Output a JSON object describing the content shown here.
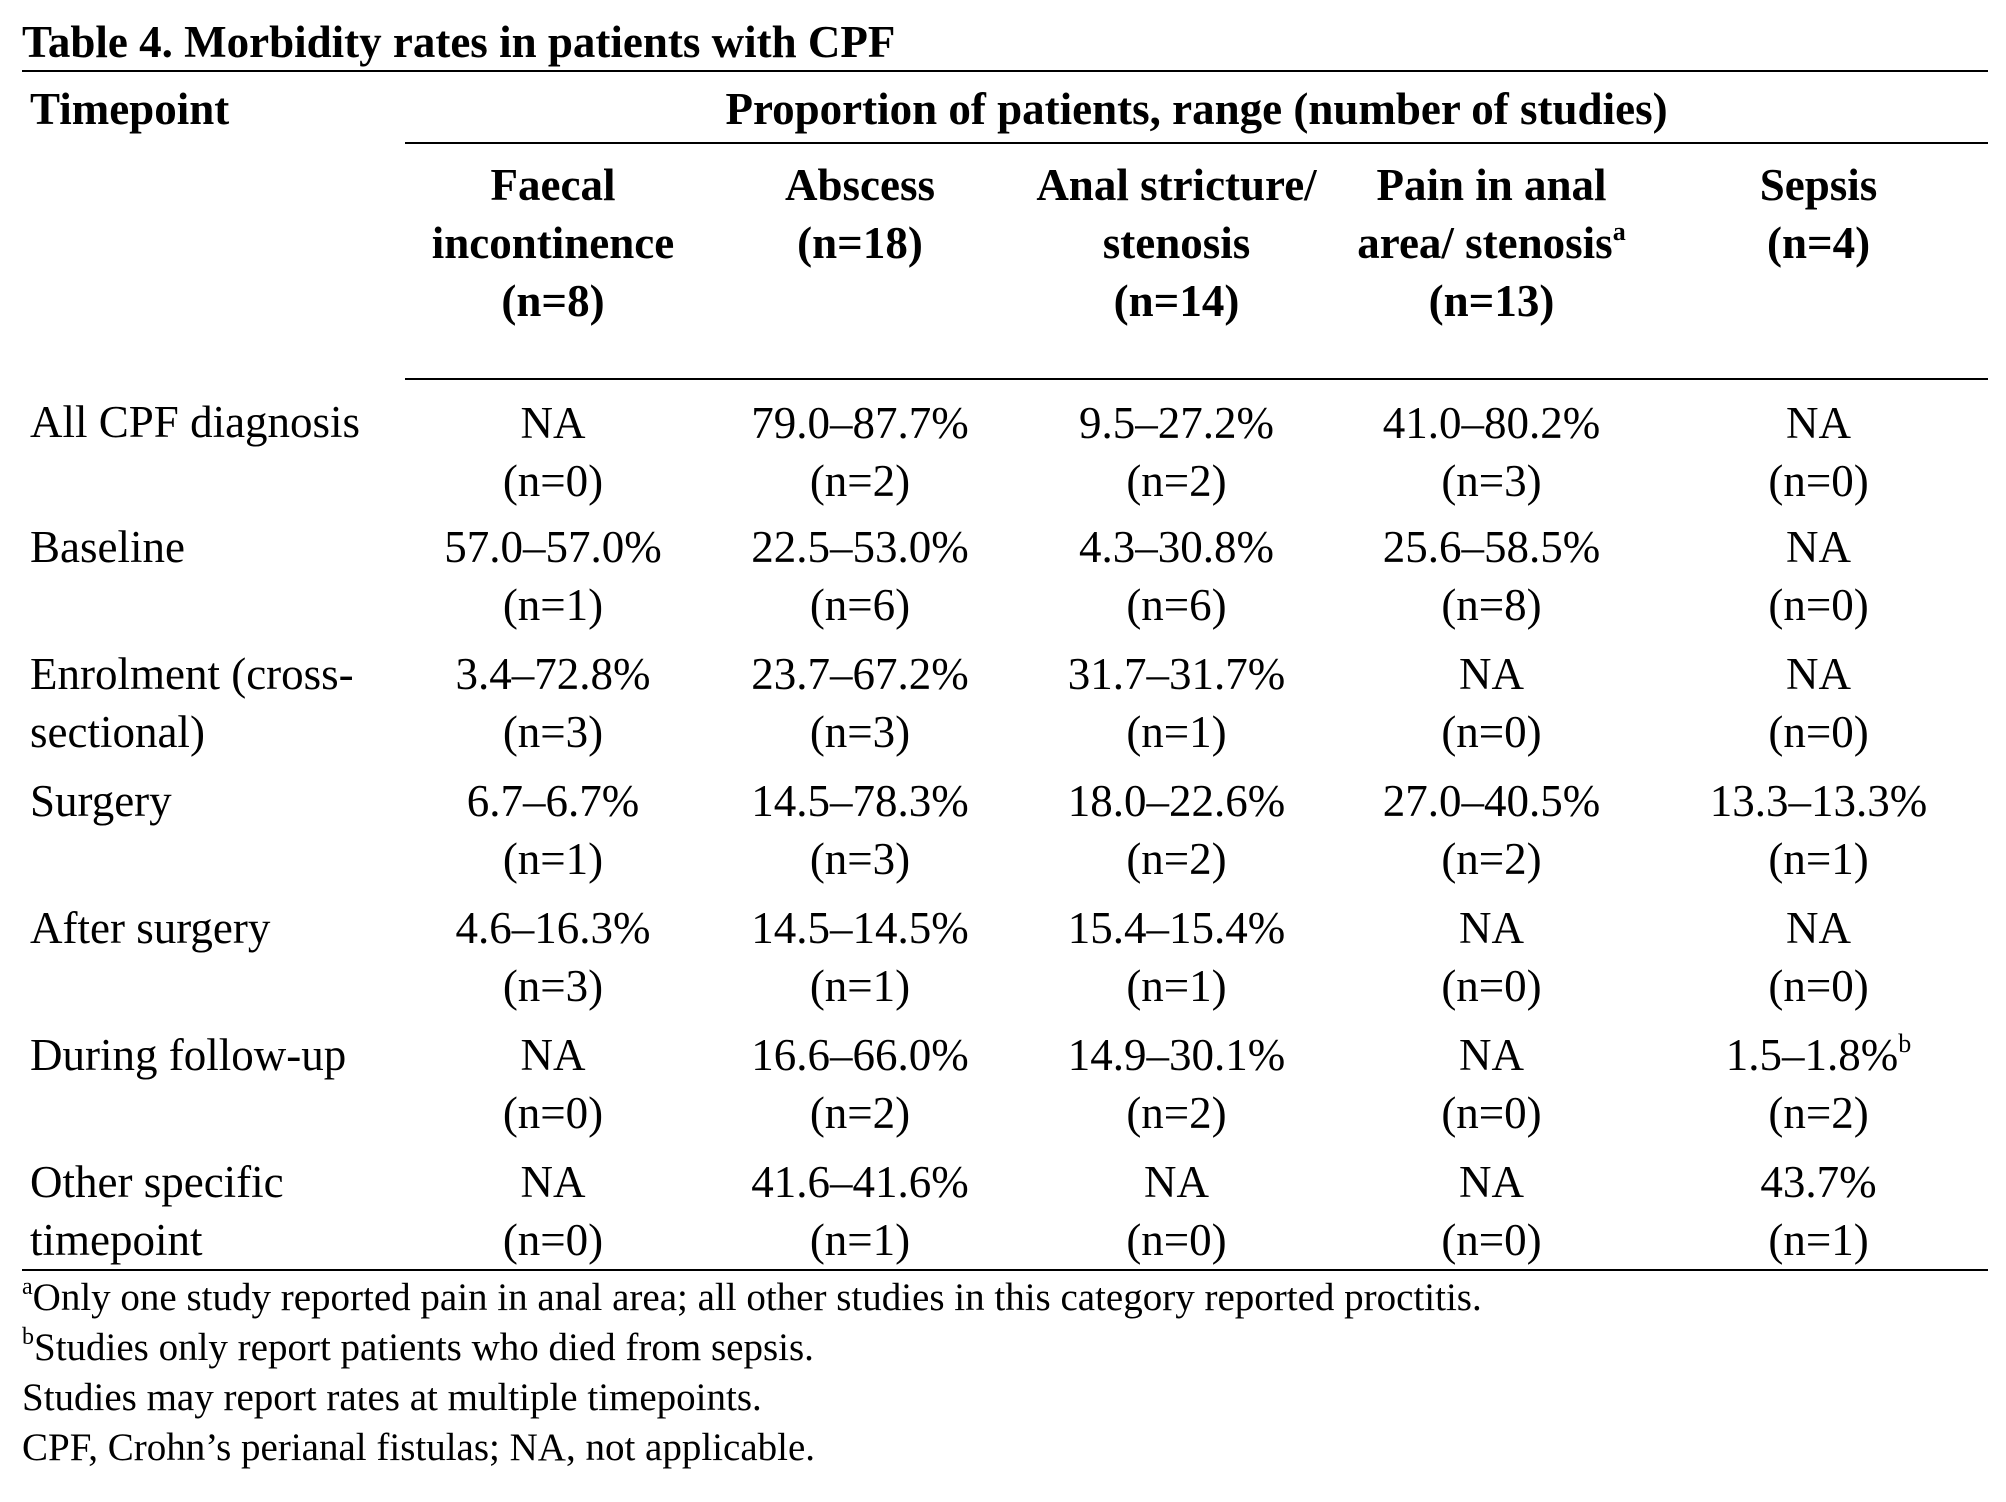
{
  "title": "Table 4. Morbidity rates in patients with CPF",
  "header": {
    "timepoint_label": "Timepoint",
    "group_label": "Proportion of patients, range (number of studies)",
    "columns": [
      {
        "label": "Faecal incontinence",
        "sup": "",
        "n": "(n=8)"
      },
      {
        "label": "Abscess",
        "sup": "",
        "n": "(n=18)"
      },
      {
        "label": "Anal stricture/ stenosis",
        "sup": "",
        "n": "(n=14)"
      },
      {
        "label": "Pain in anal area/ stenosis",
        "sup": "a",
        "n": "(n=13)"
      },
      {
        "label": "Sepsis",
        "sup": "",
        "n": "(n=4)"
      }
    ]
  },
  "rows": [
    {
      "timepoint": "All CPF diagnosis",
      "cells": [
        {
          "value": "NA",
          "sup": "",
          "n": "(n=0)"
        },
        {
          "value": "79.0–87.7%",
          "sup": "",
          "n": "(n=2)"
        },
        {
          "value": "9.5–27.2%",
          "sup": "",
          "n": "(n=2)"
        },
        {
          "value": "41.0–80.2%",
          "sup": "",
          "n": "(n=3)"
        },
        {
          "value": "NA",
          "sup": "",
          "n": "(n=0)"
        }
      ]
    },
    {
      "timepoint": "Baseline",
      "cells": [
        {
          "value": "57.0–57.0%",
          "sup": "",
          "n": "(n=1)"
        },
        {
          "value": "22.5–53.0%",
          "sup": "",
          "n": "(n=6)"
        },
        {
          "value": "4.3–30.8%",
          "sup": "",
          "n": "(n=6)"
        },
        {
          "value": "25.6–58.5%",
          "sup": "",
          "n": "(n=8)"
        },
        {
          "value": "NA",
          "sup": "",
          "n": "(n=0)"
        }
      ]
    },
    {
      "timepoint": "Enrolment (cross-sectional)",
      "cells": [
        {
          "value": "3.4–72.8%",
          "sup": "",
          "n": "(n=3)"
        },
        {
          "value": "23.7–67.2%",
          "sup": "",
          "n": "(n=3)"
        },
        {
          "value": "31.7–31.7%",
          "sup": "",
          "n": "(n=1)"
        },
        {
          "value": "NA",
          "sup": "",
          "n": "(n=0)"
        },
        {
          "value": "NA",
          "sup": "",
          "n": "(n=0)"
        }
      ]
    },
    {
      "timepoint": "Surgery",
      "cells": [
        {
          "value": "6.7–6.7%",
          "sup": "",
          "n": "(n=1)"
        },
        {
          "value": "14.5–78.3%",
          "sup": "",
          "n": "(n=3)"
        },
        {
          "value": "18.0–22.6%",
          "sup": "",
          "n": "(n=2)"
        },
        {
          "value": "27.0–40.5%",
          "sup": "",
          "n": "(n=2)"
        },
        {
          "value": "13.3–13.3%",
          "sup": "",
          "n": "(n=1)"
        }
      ]
    },
    {
      "timepoint": "After surgery",
      "cells": [
        {
          "value": "4.6–16.3%",
          "sup": "",
          "n": "(n=3)"
        },
        {
          "value": "14.5–14.5%",
          "sup": "",
          "n": "(n=1)"
        },
        {
          "value": "15.4–15.4%",
          "sup": "",
          "n": "(n=1)"
        },
        {
          "value": "NA",
          "sup": "",
          "n": "(n=0)"
        },
        {
          "value": "NA",
          "sup": "",
          "n": "(n=0)"
        }
      ]
    },
    {
      "timepoint": "During follow-up",
      "cells": [
        {
          "value": "NA",
          "sup": "",
          "n": "(n=0)"
        },
        {
          "value": "16.6–66.0%",
          "sup": "",
          "n": "(n=2)"
        },
        {
          "value": "14.9–30.1%",
          "sup": "",
          "n": "(n=2)"
        },
        {
          "value": "NA",
          "sup": "",
          "n": "(n=0)"
        },
        {
          "value": "1.5–1.8%",
          "sup": "b",
          "n": "(n=2)"
        }
      ]
    },
    {
      "timepoint": "Other specific timepoint",
      "cells": [
        {
          "value": "NA",
          "sup": "",
          "n": "(n=0)"
        },
        {
          "value": "41.6–41.6%",
          "sup": "",
          "n": "(n=1)"
        },
        {
          "value": "NA",
          "sup": "",
          "n": "(n=0)"
        },
        {
          "value": "NA",
          "sup": "",
          "n": "(n=0)"
        },
        {
          "value": "43.7%",
          "sup": "",
          "n": "(n=1)"
        }
      ]
    }
  ],
  "footnotes": [
    {
      "sup": "a",
      "text": "Only one study reported pain in anal area; all other studies in this category reported proctitis."
    },
    {
      "sup": "b",
      "text": "Studies only report patients who died from sepsis."
    },
    {
      "sup": "",
      "text": "Studies may report rates at multiple timepoints."
    },
    {
      "sup": "",
      "text": "CPF, Crohn’s perianal fistulas; NA, not applicable."
    }
  ]
}
